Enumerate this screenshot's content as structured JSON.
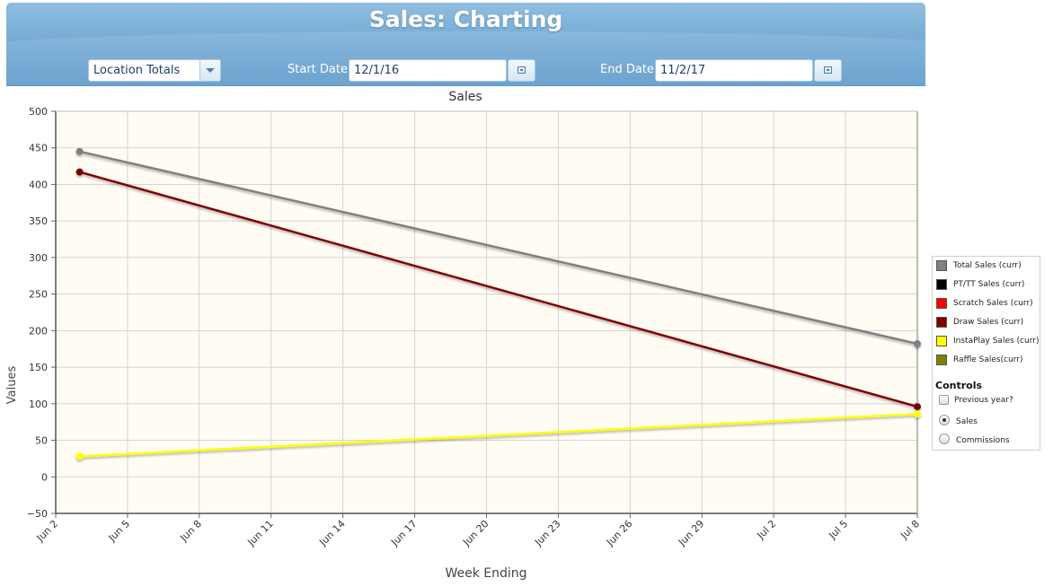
{
  "header": {
    "title": "Sales: Charting",
    "location_select": "Location Totals",
    "start_label": "Start Date",
    "start_value": "12/1/16",
    "end_label": "End Date",
    "end_value": "11/2/17"
  },
  "legend": {
    "items": [
      {
        "label": "Total Sales (curr)",
        "color": "#808080"
      },
      {
        "label": "PT/TT Sales (curr)",
        "color": "#000000"
      },
      {
        "label": "Scratch Sales (curr)",
        "color": "#ff0000"
      },
      {
        "label": "Draw Sales (curr)",
        "color": "#800000"
      },
      {
        "label": "InstaPlay Sales (curr)",
        "color": "#ffff00"
      },
      {
        "label": "Raffle Sales(curr)",
        "color": "#808000"
      }
    ],
    "controls_title": "Controls",
    "previous_year": "Previous year?",
    "sales": "Sales",
    "commissions": "Commissions",
    "selected": "Sales"
  },
  "chart_data": {
    "type": "line",
    "title": "Sales",
    "xlabel": "Week Ending",
    "ylabel": "Values",
    "ylim": [
      -50,
      500
    ],
    "yticks": [
      "500",
      "450",
      "400",
      "350",
      "300",
      "250",
      "200",
      "150",
      "100",
      "50",
      "0",
      "−50"
    ],
    "xticks": [
      "Jun 2",
      "Jun 5",
      "Jun 8",
      "Jun 11",
      "Jun 14",
      "Jun 17",
      "Jun 20",
      "Jun 23",
      "Jun 26",
      "Jun 29",
      "Jul 2",
      "Jul 5",
      "Jul 8"
    ],
    "x": [
      "Jun 3",
      "Jul 8"
    ],
    "series": [
      {
        "name": "Total Sales (curr)",
        "color": "#808080",
        "values": [
          445,
          182
        ]
      },
      {
        "name": "Draw Sales (curr)",
        "color": "#800000",
        "values": [
          417,
          96
        ]
      },
      {
        "name": "InstaPlay Sales (curr)",
        "color": "#ffff00",
        "values": [
          28,
          86
        ]
      }
    ],
    "grid": true,
    "legend": "right"
  }
}
